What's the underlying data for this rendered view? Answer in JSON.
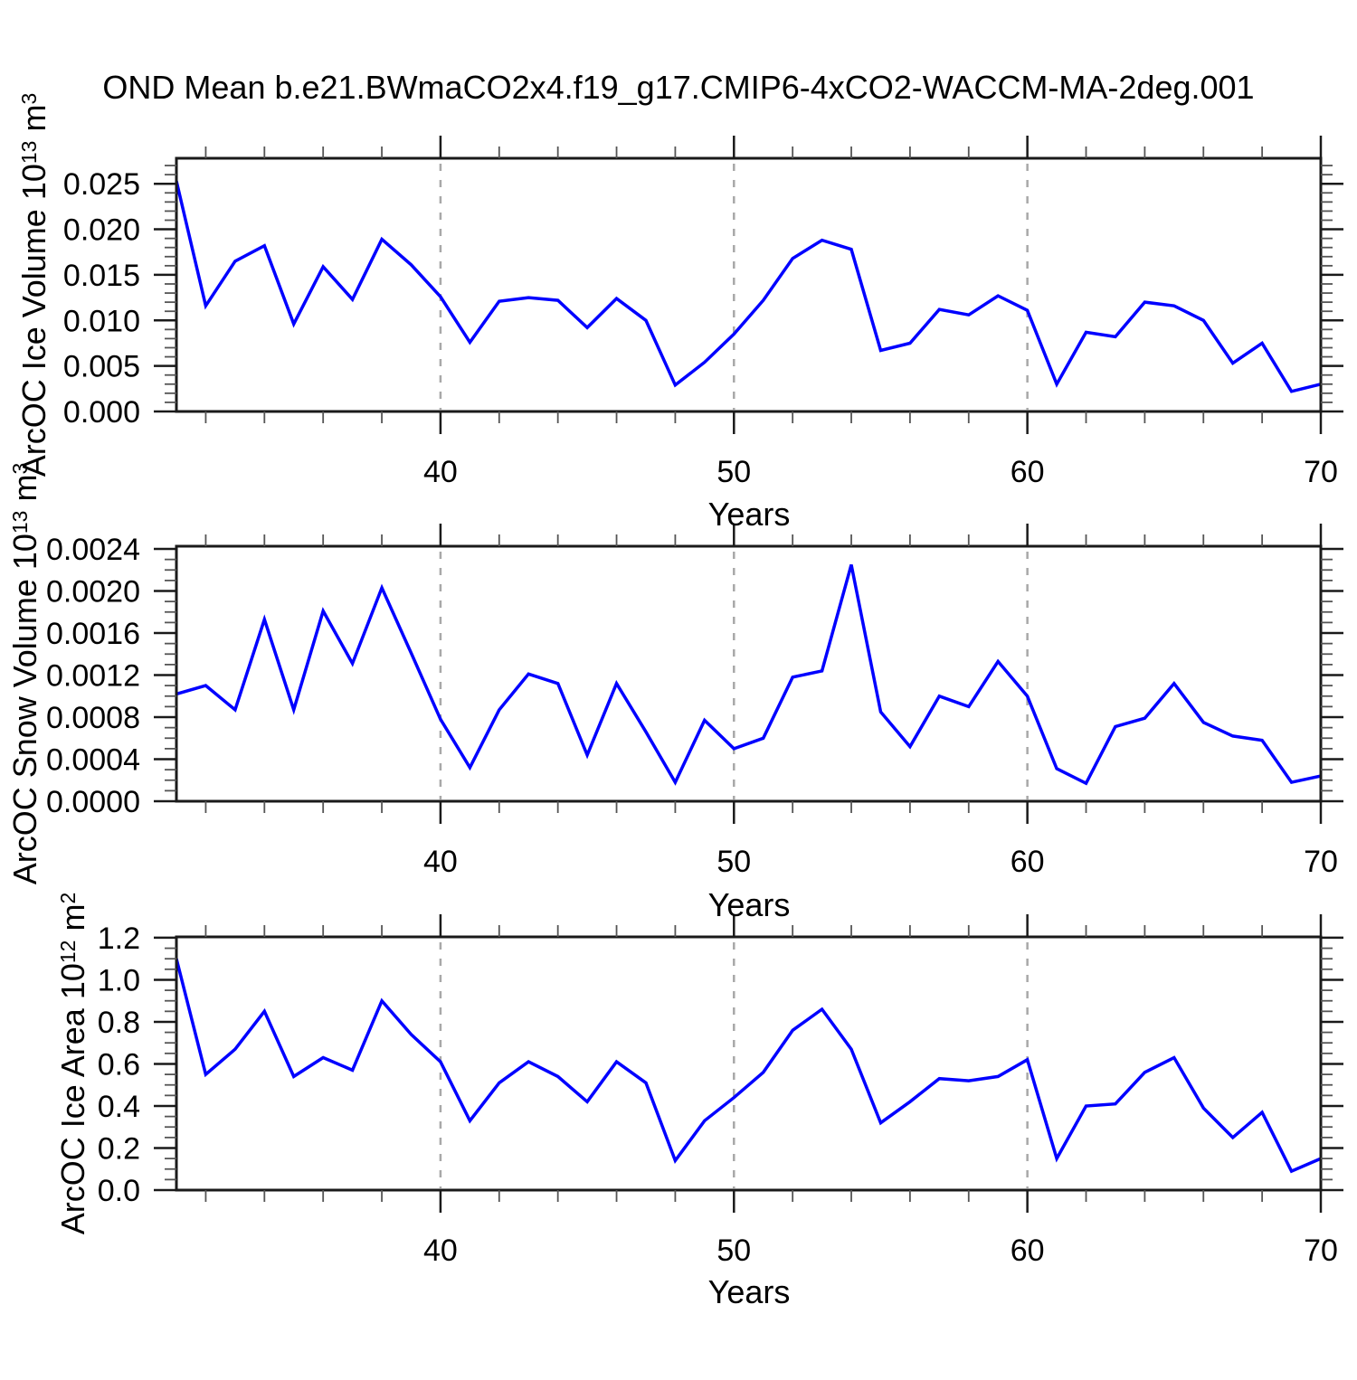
{
  "title": "OND Mean b.e21.BWmaCO2x4.f19_g17.CMIP6-4xCO2-WACCM-MA-2deg.001",
  "line_color": "#0000ff",
  "frame_color": "#1a1a1a",
  "grid_color": "#a8a8a8",
  "minor_tick_color": "#555555",
  "chart_data": [
    {
      "type": "line",
      "name": "arcoc-ice-volume",
      "ylabel": "ArcOC Ice Volume 10^13 m^3",
      "ylabel_parts": [
        {
          "t": "ArcOC Ice Volume 10"
        },
        {
          "t": "13",
          "sup": true
        },
        {
          "t": " m"
        },
        {
          "t": "3",
          "sup": true
        }
      ],
      "xlabel": "Years",
      "x": [
        31,
        32,
        33,
        34,
        35,
        36,
        37,
        38,
        39,
        40,
        41,
        42,
        43,
        44,
        45,
        46,
        47,
        48,
        49,
        50,
        51,
        52,
        53,
        54,
        55,
        56,
        57,
        58,
        59,
        60,
        61,
        62,
        63,
        64,
        65,
        66,
        67,
        68,
        69,
        70
      ],
      "values": [
        0.0253,
        0.0116,
        0.0165,
        0.0182,
        0.0096,
        0.0159,
        0.0123,
        0.0189,
        0.0161,
        0.0126,
        0.0076,
        0.0121,
        0.0125,
        0.0122,
        0.0092,
        0.0124,
        0.01,
        0.0029,
        0.0054,
        0.0085,
        0.0122,
        0.0168,
        0.0188,
        0.0178,
        0.0067,
        0.0075,
        0.0112,
        0.0106,
        0.0127,
        0.0111,
        0.003,
        0.0087,
        0.0082,
        0.012,
        0.0116,
        0.01,
        0.0053,
        0.0075,
        0.0022,
        0.003
      ],
      "xlim": [
        31,
        70
      ],
      "ylim": [
        0,
        0.0278
      ],
      "yticks": [
        0,
        0.005,
        0.01,
        0.015,
        0.02,
        0.025
      ],
      "ytick_labels": [
        "0.000",
        "0.005",
        "0.010",
        "0.015",
        "0.020",
        "0.025"
      ],
      "y_minor_step": 0.001,
      "xticks": [
        40,
        50,
        60,
        70
      ],
      "xtick_labels": [
        "40",
        "50",
        "60",
        "70"
      ],
      "x_minor_step": 2,
      "gridlines_x": [
        40,
        50,
        60
      ],
      "grid": "dashed-vertical",
      "legend": "none"
    },
    {
      "type": "line",
      "name": "arcoc-snow-volume",
      "ylabel": "ArcOC Snow Volume 10^13 m^3",
      "ylabel_parts": [
        {
          "t": "ArcOC Snow Volume 10"
        },
        {
          "t": "13",
          "sup": true
        },
        {
          "t": " m"
        },
        {
          "t": "3",
          "sup": true
        }
      ],
      "xlabel": "Years",
      "x": [
        31,
        32,
        33,
        34,
        35,
        36,
        37,
        38,
        39,
        40,
        41,
        42,
        43,
        44,
        45,
        46,
        47,
        48,
        49,
        50,
        51,
        52,
        53,
        54,
        55,
        56,
        57,
        58,
        59,
        60,
        61,
        62,
        63,
        64,
        65,
        66,
        67,
        68,
        69,
        70
      ],
      "values": [
        0.00102,
        0.0011,
        0.00087,
        0.00173,
        0.00087,
        0.00181,
        0.00131,
        0.00203,
        0.00141,
        0.00078,
        0.00032,
        0.00087,
        0.00121,
        0.00112,
        0.00044,
        0.00112,
        0.00066,
        0.00018,
        0.00077,
        0.0005,
        0.0006,
        0.00118,
        0.00124,
        0.00225,
        0.00085,
        0.00052,
        0.001,
        0.0009,
        0.00133,
        0.001,
        0.00031,
        0.00017,
        0.00071,
        0.00079,
        0.00112,
        0.00075,
        0.00062,
        0.00058,
        0.00018,
        0.00024
      ],
      "xlim": [
        31,
        70
      ],
      "ylim": [
        0,
        0.002426
      ],
      "yticks": [
        0,
        0.0004,
        0.0008,
        0.0012,
        0.0016,
        0.002,
        0.0024
      ],
      "ytick_labels": [
        "0.0000",
        "0.0004",
        "0.0008",
        "0.0012",
        "0.0016",
        "0.0020",
        "0.0024"
      ],
      "y_minor_step": 0.0001,
      "xticks": [
        40,
        50,
        60,
        70
      ],
      "xtick_labels": [
        "40",
        "50",
        "60",
        "70"
      ],
      "x_minor_step": 2,
      "gridlines_x": [
        40,
        50,
        60
      ],
      "grid": "dashed-vertical",
      "legend": "none"
    },
    {
      "type": "line",
      "name": "arcoc-ice-area",
      "ylabel": "ArcOC Ice Area 10^12 m^2",
      "ylabel_parts": [
        {
          "t": "ArcOC Ice Area 10"
        },
        {
          "t": "12",
          "sup": true
        },
        {
          "t": " m"
        },
        {
          "t": "2",
          "sup": true
        }
      ],
      "xlabel": "Years",
      "x": [
        31,
        32,
        33,
        34,
        35,
        36,
        37,
        38,
        39,
        40,
        41,
        42,
        43,
        44,
        45,
        46,
        47,
        48,
        49,
        50,
        51,
        52,
        53,
        54,
        55,
        56,
        57,
        58,
        59,
        60,
        61,
        62,
        63,
        64,
        65,
        66,
        67,
        68,
        69,
        70
      ],
      "values": [
        1.1,
        0.55,
        0.67,
        0.85,
        0.54,
        0.63,
        0.57,
        0.9,
        0.74,
        0.61,
        0.33,
        0.51,
        0.61,
        0.54,
        0.42,
        0.61,
        0.51,
        0.14,
        0.33,
        0.44,
        0.56,
        0.76,
        0.86,
        0.67,
        0.32,
        0.42,
        0.53,
        0.52,
        0.54,
        0.62,
        0.15,
        0.4,
        0.41,
        0.56,
        0.63,
        0.39,
        0.25,
        0.37,
        0.09,
        0.15
      ],
      "xlim": [
        31,
        70
      ],
      "ylim": [
        0,
        1.204
      ],
      "yticks": [
        0,
        0.2,
        0.4,
        0.6,
        0.8,
        1.0,
        1.2
      ],
      "ytick_labels": [
        "0.0",
        "0.2",
        "0.4",
        "0.6",
        "0.8",
        "1.0",
        "1.2"
      ],
      "y_minor_step": 0.05,
      "xticks": [
        40,
        50,
        60,
        70
      ],
      "xtick_labels": [
        "40",
        "50",
        "60",
        "70"
      ],
      "x_minor_step": 2,
      "gridlines_x": [
        40,
        50,
        60
      ],
      "grid": "dashed-vertical",
      "legend": "none"
    }
  ]
}
